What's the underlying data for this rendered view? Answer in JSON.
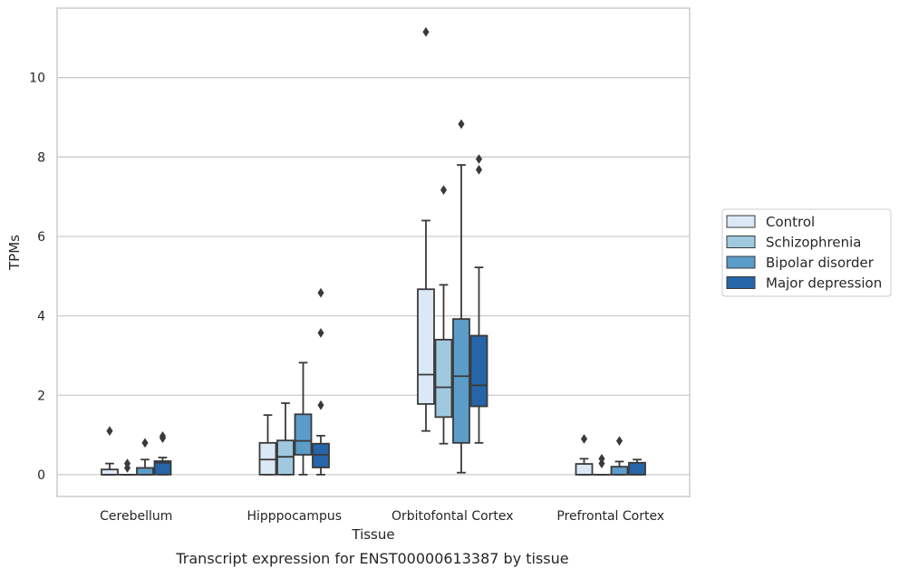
{
  "chart_data": {
    "type": "boxplot",
    "caption": "Transcript expression for ENST00000613387 by tissue",
    "xlabel": "Tissue",
    "ylabel": "TPMs",
    "ylim": [
      -0.55,
      11.75
    ],
    "yticks": [
      0,
      2,
      4,
      6,
      8,
      10
    ],
    "grid": true,
    "legend_position": "right",
    "categories": [
      "Cerebellum",
      "Hipppocampus",
      "Orbitofontal Cortex",
      "Prefrontal Cortex"
    ],
    "series": [
      {
        "name": "Control",
        "color": "#dbe9f6",
        "boxes": [
          {
            "whislo": 0,
            "q1": 0,
            "med": 0,
            "q3": 0.13,
            "whishi": 0.28,
            "fliers": [
              1.1
            ]
          },
          {
            "whislo": 0,
            "q1": 0,
            "med": 0.38,
            "q3": 0.8,
            "whishi": 1.5,
            "fliers": []
          },
          {
            "whislo": 1.1,
            "q1": 1.78,
            "med": 2.52,
            "q3": 4.67,
            "whishi": 6.4,
            "fliers": [
              11.15
            ]
          },
          {
            "whislo": 0,
            "q1": 0,
            "med": 0,
            "q3": 0.27,
            "whishi": 0.4,
            "fliers": [
              0.9
            ]
          }
        ]
      },
      {
        "name": "Schizophrenia",
        "color": "#a0c9e0",
        "boxes": [
          {
            "whislo": 0,
            "q1": 0,
            "med": 0,
            "q3": 0,
            "whishi": 0,
            "fliers": [
              0.17,
              0.28
            ]
          },
          {
            "whislo": 0,
            "q1": 0,
            "med": 0.45,
            "q3": 0.86,
            "whishi": 1.8,
            "fliers": []
          },
          {
            "whislo": 0.78,
            "q1": 1.45,
            "med": 2.2,
            "q3": 3.4,
            "whishi": 4.78,
            "fliers": [
              7.17
            ]
          },
          {
            "whislo": 0,
            "q1": 0,
            "med": 0,
            "q3": 0,
            "whishi": 0,
            "fliers": [
              0.28,
              0.4
            ]
          }
        ]
      },
      {
        "name": "Bipolar disorder",
        "color": "#5b9cc9",
        "boxes": [
          {
            "whislo": 0,
            "q1": 0,
            "med": 0,
            "q3": 0.17,
            "whishi": 0.38,
            "fliers": [
              0.8
            ]
          },
          {
            "whislo": 0,
            "q1": 0.5,
            "med": 0.85,
            "q3": 1.52,
            "whishi": 2.82,
            "fliers": []
          },
          {
            "whislo": 0.05,
            "q1": 0.8,
            "med": 2.48,
            "q3": 3.92,
            "whishi": 7.8,
            "fliers": [
              8.83
            ]
          },
          {
            "whislo": 0,
            "q1": 0,
            "med": 0,
            "q3": 0.2,
            "whishi": 0.33,
            "fliers": [
              0.85
            ]
          }
        ]
      },
      {
        "name": "Major depression",
        "color": "#2565a8",
        "boxes": [
          {
            "whislo": 0,
            "q1": 0,
            "med": 0.3,
            "q3": 0.34,
            "whishi": 0.43,
            "fliers": [
              0.92,
              0.97
            ]
          },
          {
            "whislo": 0,
            "q1": 0.18,
            "med": 0.5,
            "q3": 0.78,
            "whishi": 0.98,
            "fliers": [
              1.75,
              3.57,
              4.58
            ]
          },
          {
            "whislo": 0.8,
            "q1": 1.72,
            "med": 2.25,
            "q3": 3.5,
            "whishi": 5.22,
            "fliers": [
              7.68,
              7.95
            ]
          },
          {
            "whislo": 0,
            "q1": 0,
            "med": 0,
            "q3": 0.3,
            "whishi": 0.38,
            "fliers": []
          }
        ]
      }
    ]
  }
}
